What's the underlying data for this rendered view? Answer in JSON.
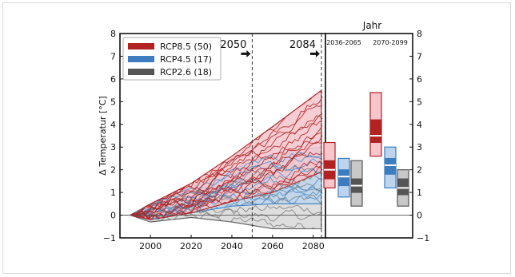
{
  "chart_data": [
    {
      "type": "line",
      "ylabel": "Δ Temperatur [°C]",
      "xlim": [
        1985,
        2086
      ],
      "ylim": [
        -1,
        8
      ],
      "x_ticks": [
        2000,
        2020,
        2040,
        2060,
        2080
      ],
      "y_ticks": [
        -1,
        0,
        1,
        2,
        3,
        4,
        5,
        6,
        7,
        8
      ],
      "grid": false,
      "legend_position": "top-left",
      "series": [
        {
          "name": "RCP8.5 (50)",
          "color": "#b22222",
          "envelope": {
            "x": [
              1990,
              2000,
              2020,
              2040,
              2060,
              2084
            ],
            "low": [
              0,
              -0.2,
              0.1,
              0.6,
              1.0,
              1.9
            ],
            "high": [
              0,
              0.5,
              1.4,
              2.6,
              3.9,
              5.5
            ]
          }
        },
        {
          "name": "RCP4.5 (17)",
          "color": "#3d7dbf",
          "envelope": {
            "x": [
              1990,
              2000,
              2020,
              2040,
              2060,
              2084
            ],
            "low": [
              0,
              -0.2,
              0.1,
              0.4,
              0.5,
              0.5
            ],
            "high": [
              0,
              0.5,
              1.2,
              2.0,
              2.7,
              3.0
            ]
          }
        },
        {
          "name": "RCP2.6 (18)",
          "color": "#555555",
          "envelope": {
            "x": [
              1990,
              2000,
              2020,
              2040,
              2060,
              2084
            ],
            "low": [
              0,
              -0.3,
              -0.1,
              -0.3,
              -0.6,
              -0.6
            ],
            "high": [
              0,
              0.5,
              1.0,
              1.6,
              2.2,
              2.2
            ]
          }
        }
      ],
      "annotations": [
        {
          "text": "2050",
          "x": 2050,
          "y": 7.3
        },
        {
          "text": "2084",
          "x": 2084,
          "y": 7.3
        }
      ],
      "vlines": [
        2050,
        2084
      ]
    },
    {
      "type": "box",
      "title": "Jahr",
      "ylim": [
        -1,
        8
      ],
      "y_ticks": [
        -1,
        0,
        1,
        2,
        3,
        4,
        5,
        6,
        7,
        8
      ],
      "groups": [
        {
          "label": "2036-2065",
          "boxes": [
            {
              "scenario": "RCP8.5",
              "color": "#b22222",
              "fill": "#f6c6cc",
              "min": 1.2,
              "q1": 1.6,
              "median": 2.0,
              "q3": 2.4,
              "max": 3.2
            },
            {
              "scenario": "RCP4.5",
              "color": "#3d7dbf",
              "fill": "#bcd4ee",
              "min": 0.8,
              "q1": 1.3,
              "median": 1.7,
              "q3": 2.0,
              "max": 2.5
            },
            {
              "scenario": "RCP2.6",
              "color": "#555555",
              "fill": "#c8c8c8",
              "min": 0.4,
              "q1": 1.0,
              "median": 1.3,
              "q3": 1.6,
              "max": 2.4
            }
          ]
        },
        {
          "label": "2070-2099",
          "boxes": [
            {
              "scenario": "RCP8.5",
              "color": "#b22222",
              "fill": "#f6c6cc",
              "min": 2.6,
              "q1": 3.2,
              "median": 3.5,
              "q3": 4.2,
              "max": 5.4
            },
            {
              "scenario": "RCP4.5",
              "color": "#3d7dbf",
              "fill": "#bcd4ee",
              "min": 1.2,
              "q1": 1.8,
              "median": 2.2,
              "q3": 2.5,
              "max": 3.0
            },
            {
              "scenario": "RCP2.6",
              "color": "#555555",
              "fill": "#c8c8c8",
              "min": 0.4,
              "q1": 0.9,
              "median": 1.2,
              "q3": 1.6,
              "max": 2.0
            }
          ]
        }
      ]
    }
  ]
}
